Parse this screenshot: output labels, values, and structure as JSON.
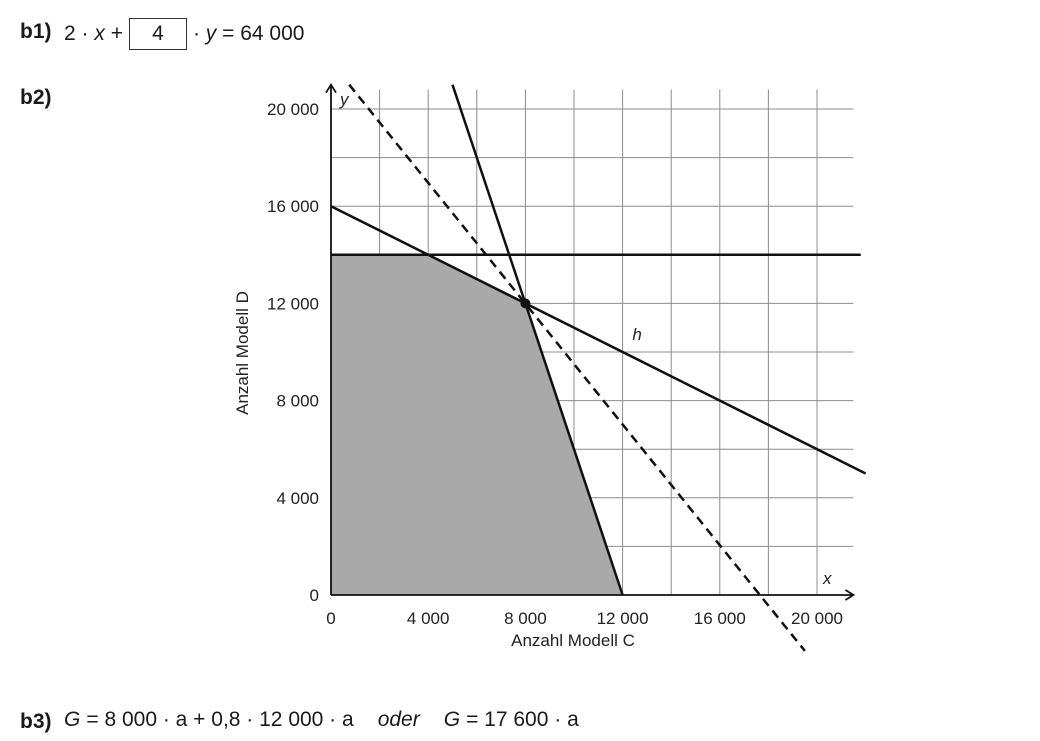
{
  "b1": {
    "label": "b1)",
    "lhs_coefficient": "2",
    "lhs_var": "x",
    "answer_value": "4",
    "rhs_var": "y",
    "rhs_value": "64 000"
  },
  "b2": {
    "label": "b2)"
  },
  "b3": {
    "label": "b3)",
    "expr1_var": "G",
    "expr1": "= 8 000 · a + 0,8 · 12 000 · a",
    "connector": "oder",
    "expr2_var": "G",
    "expr2": "= 17 600 · a"
  },
  "chart_data": {
    "type": "line",
    "xlabel": "Anzahl Modell C",
    "ylabel": "Anzahl Modell D",
    "x_var": "x",
    "y_var": "y",
    "xlim": [
      0,
      21000
    ],
    "ylim": [
      0,
      21000
    ],
    "grid": true,
    "x_ticks": [
      {
        "value": 0,
        "label": "0"
      },
      {
        "value": 4000,
        "label": "4 000"
      },
      {
        "value": 8000,
        "label": "8 000"
      },
      {
        "value": 12000,
        "label": "12 000"
      },
      {
        "value": 16000,
        "label": "16 000"
      },
      {
        "value": 20000,
        "label": "20 000"
      }
    ],
    "y_ticks": [
      {
        "value": 0,
        "label": "0"
      },
      {
        "value": 4000,
        "label": "4 000"
      },
      {
        "value": 8000,
        "label": "8 000"
      },
      {
        "value": 12000,
        "label": "12 000"
      },
      {
        "value": 16000,
        "label": "16 000"
      },
      {
        "value": 20000,
        "label": "20 000"
      }
    ],
    "lines": [
      {
        "id": "horizontal",
        "style": "solid",
        "points": [
          [
            0,
            14000
          ],
          [
            21800,
            14000
          ]
        ]
      },
      {
        "id": "h",
        "name": "h",
        "style": "solid",
        "points": [
          [
            0,
            16000
          ],
          [
            22000,
            5000
          ]
        ]
      },
      {
        "id": "steep",
        "style": "solid",
        "points": [
          [
            5000,
            21000
          ],
          [
            12000,
            0
          ]
        ]
      },
      {
        "id": "dashed",
        "style": "dashed",
        "points": [
          [
            750,
            21000
          ],
          [
            19500,
            -2300
          ]
        ]
      }
    ],
    "line_labels": [
      {
        "text": "h",
        "at": [
          12400,
          10500
        ]
      }
    ],
    "feasible_region": [
      [
        0,
        0
      ],
      [
        0,
        14000
      ],
      [
        4000,
        14000
      ],
      [
        8000,
        12000
      ],
      [
        12000,
        0
      ]
    ],
    "marked_point": [
      8000,
      12000
    ]
  }
}
